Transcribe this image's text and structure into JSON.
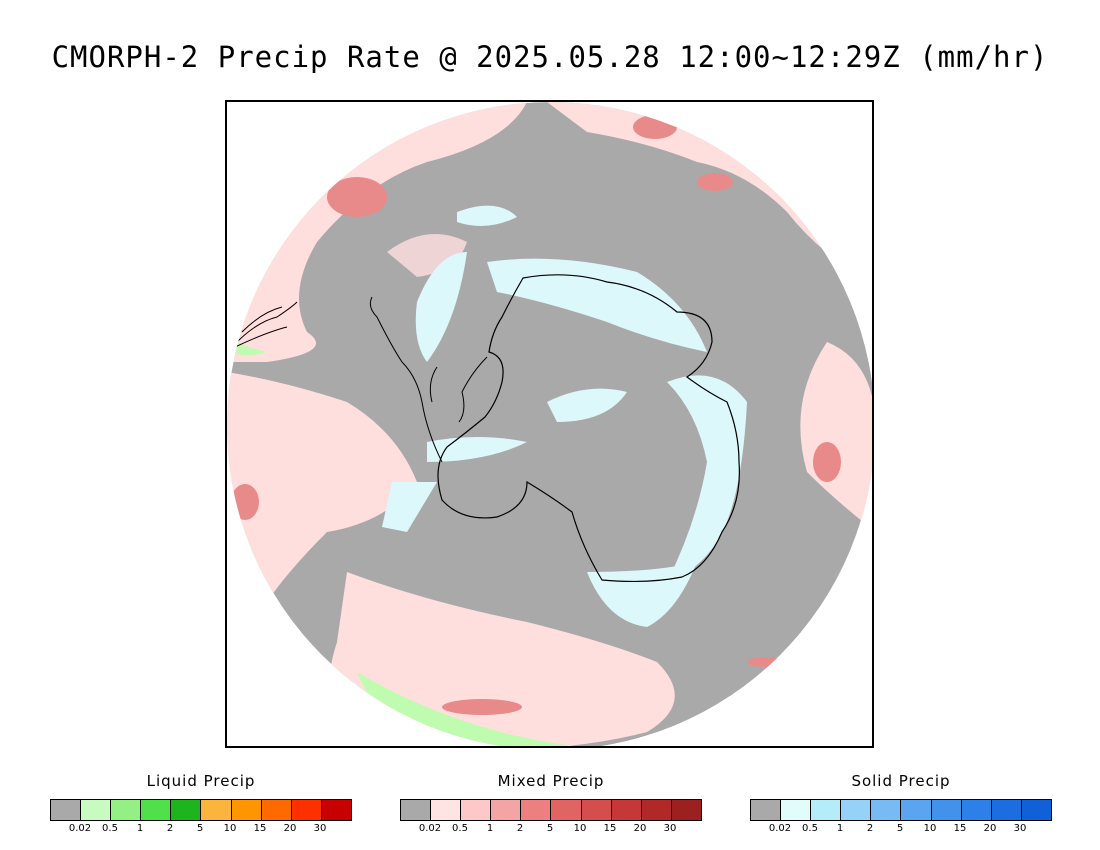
{
  "title": "CMORPH-2 Precip Rate @ 2025.05.28 12:00~12:29Z (mm/hr)",
  "map": {
    "projection": "south-polar-stereographic",
    "background_color": "#a9a9a9",
    "coastline_color": "#000000"
  },
  "legends": [
    {
      "id": "liquid",
      "title": "Liquid Precip",
      "colors": [
        "#a9a9a9",
        "#c8fbc0",
        "#94f085",
        "#4fe04a",
        "#1eb41e",
        "#fbb43c",
        "#ff9600",
        "#ff6a00",
        "#ff3000",
        "#c80000"
      ],
      "ticks": [
        "0.02",
        "0.5",
        "1",
        "2",
        "5",
        "10",
        "15",
        "20",
        "30"
      ]
    },
    {
      "id": "mixed",
      "title": "Mixed Precip",
      "colors": [
        "#a9a9a9",
        "#ffe4e4",
        "#ffc8c8",
        "#f4a4a4",
        "#ec8080",
        "#e06464",
        "#d44e4e",
        "#c43838",
        "#b02828",
        "#9c2020"
      ],
      "ticks": [
        "0.02",
        "0.5",
        "1",
        "2",
        "5",
        "10",
        "15",
        "20",
        "30"
      ]
    },
    {
      "id": "solid",
      "title": "Solid Precip",
      "colors": [
        "#a9a9a9",
        "#e2fcfc",
        "#b4ecfa",
        "#96d2f8",
        "#78baf4",
        "#5aa4f0",
        "#4292ec",
        "#2c80e8",
        "#1c6ee0",
        "#1060d8"
      ],
      "ticks": [
        "0.02",
        "0.5",
        "1",
        "2",
        "5",
        "10",
        "15",
        "20",
        "30"
      ]
    }
  ]
}
